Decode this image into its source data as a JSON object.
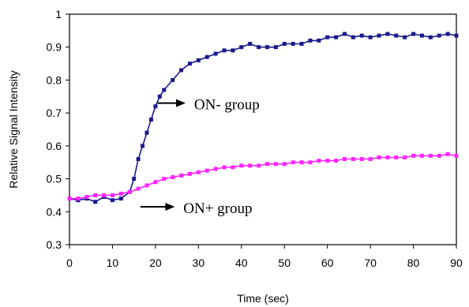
{
  "chart_data": {
    "type": "line",
    "title": "",
    "xlabel": "Time (sec)",
    "ylabel": "Relative Signal Intensity",
    "xlim": [
      0,
      90
    ],
    "ylim": [
      0.3,
      1
    ],
    "x_ticks": [
      "0",
      "10",
      "20",
      "30",
      "40",
      "50",
      "60",
      "70",
      "80",
      "90"
    ],
    "y_ticks": [
      "0.3",
      "0.4",
      "0.5",
      "0.6",
      "0.7",
      "0.8",
      "0.9",
      "1"
    ],
    "grid": false,
    "legend": "none",
    "series": [
      {
        "name": "ON- group",
        "color": "#1a1a8c",
        "marker": "square",
        "x": [
          0,
          2,
          4,
          6,
          8,
          10,
          12,
          14,
          15,
          16,
          17,
          18,
          19,
          20,
          21,
          22,
          24,
          26,
          28,
          30,
          32,
          34,
          36,
          38,
          40,
          42,
          44,
          46,
          48,
          50,
          52,
          54,
          56,
          58,
          60,
          62,
          64,
          66,
          68,
          70,
          72,
          74,
          76,
          78,
          80,
          82,
          84,
          86,
          88,
          90
        ],
        "y": [
          0.44,
          0.435,
          0.44,
          0.43,
          0.445,
          0.435,
          0.44,
          0.46,
          0.5,
          0.56,
          0.6,
          0.64,
          0.68,
          0.72,
          0.75,
          0.77,
          0.8,
          0.83,
          0.85,
          0.86,
          0.87,
          0.88,
          0.89,
          0.89,
          0.9,
          0.91,
          0.9,
          0.9,
          0.9,
          0.91,
          0.91,
          0.91,
          0.92,
          0.92,
          0.93,
          0.93,
          0.94,
          0.93,
          0.935,
          0.93,
          0.935,
          0.94,
          0.935,
          0.93,
          0.94,
          0.935,
          0.93,
          0.935,
          0.94,
          0.935
        ]
      },
      {
        "name": "ON+ group",
        "color": "#ff22ff",
        "marker": "square",
        "x": [
          0,
          2,
          4,
          6,
          8,
          10,
          12,
          14,
          16,
          18,
          20,
          22,
          24,
          26,
          28,
          30,
          32,
          34,
          36,
          38,
          40,
          42,
          44,
          46,
          48,
          50,
          52,
          54,
          56,
          58,
          60,
          62,
          64,
          66,
          68,
          70,
          72,
          74,
          76,
          78,
          80,
          82,
          84,
          86,
          88,
          90
        ],
        "y": [
          0.44,
          0.44,
          0.445,
          0.45,
          0.45,
          0.45,
          0.455,
          0.46,
          0.47,
          0.48,
          0.49,
          0.5,
          0.505,
          0.51,
          0.515,
          0.52,
          0.525,
          0.53,
          0.535,
          0.535,
          0.54,
          0.54,
          0.54,
          0.545,
          0.545,
          0.545,
          0.55,
          0.55,
          0.55,
          0.555,
          0.555,
          0.555,
          0.56,
          0.56,
          0.56,
          0.56,
          0.565,
          0.565,
          0.565,
          0.565,
          0.57,
          0.57,
          0.57,
          0.57,
          0.575,
          0.57
        ]
      }
    ],
    "annotations": [
      {
        "text": "ON- group",
        "arrow_from": [
          20.5,
          0.73
        ],
        "arrow_to": [
          27,
          0.73
        ],
        "text_at": [
          29,
          0.725
        ]
      },
      {
        "text": "ON+ group",
        "arrow_from": [
          16.5,
          0.415
        ],
        "arrow_to": [
          24.5,
          0.415
        ],
        "text_at": [
          26.5,
          0.41
        ]
      }
    ]
  }
}
